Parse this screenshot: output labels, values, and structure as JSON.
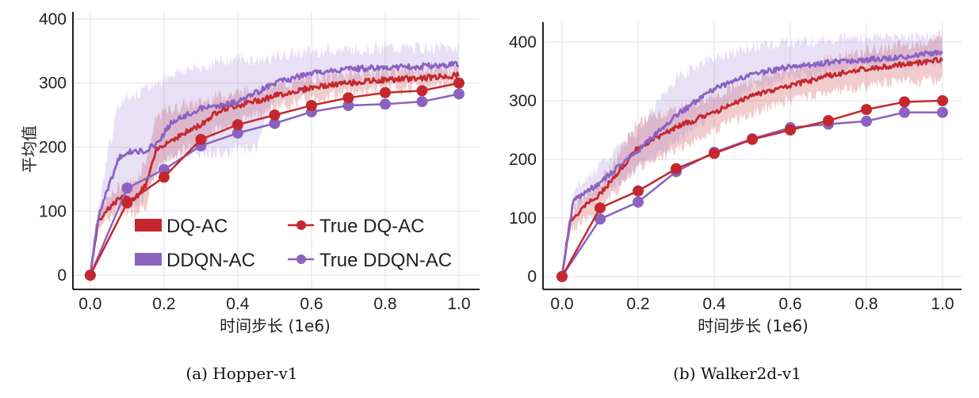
{
  "chart_data": [
    {
      "type": "line",
      "caption": "(a) Hopper-v1",
      "xlabel": "时间步长 (1e6)",
      "ylabel": "平均值",
      "xlim": [
        -0.047,
        1.056
      ],
      "ylim": [
        -22,
        411
      ],
      "xticks": [
        "0.0",
        "0.2",
        "0.4",
        "0.6",
        "0.8",
        "1.0"
      ],
      "yticks": [
        "0",
        "100",
        "200",
        "300",
        "400"
      ],
      "grid": true,
      "legend": "bottom-right",
      "colors": {
        "DQ-AC": "#c4282e",
        "DDQN-AC": "#8a62c2"
      },
      "series": [
        {
          "name": "DQ-AC",
          "kind": "mean-with-band",
          "x": [
            0,
            0.02,
            0.04,
            0.08,
            0.12,
            0.15,
            0.18,
            0.2,
            0.25,
            0.3,
            0.35,
            0.4,
            0.45,
            0.5,
            0.6,
            0.7,
            0.8,
            0.9,
            1.0
          ],
          "y": [
            0,
            80,
            100,
            120,
            120,
            140,
            195,
            205,
            220,
            235,
            258,
            265,
            272,
            280,
            293,
            300,
            305,
            308,
            312
          ],
          "lower": [
            0,
            70,
            88,
            100,
            100,
            110,
            160,
            180,
            195,
            205,
            230,
            240,
            250,
            262,
            275,
            285,
            290,
            293,
            298
          ],
          "upper": [
            0,
            90,
            112,
            140,
            145,
            180,
            245,
            255,
            265,
            270,
            280,
            285,
            290,
            295,
            308,
            315,
            320,
            322,
            325
          ]
        },
        {
          "name": "DDQN-AC",
          "kind": "mean-with-band",
          "x": [
            0,
            0.02,
            0.05,
            0.08,
            0.1,
            0.14,
            0.18,
            0.22,
            0.3,
            0.4,
            0.45,
            0.5,
            0.6,
            0.7,
            0.8,
            0.9,
            1.0
          ],
          "y": [
            0,
            85,
            140,
            185,
            192,
            193,
            205,
            238,
            260,
            270,
            285,
            300,
            315,
            322,
            324,
            326,
            330
          ],
          "lower": [
            0,
            80,
            100,
            110,
            110,
            120,
            160,
            185,
            190,
            195,
            200,
            280,
            295,
            305,
            308,
            310,
            315
          ],
          "upper": [
            0,
            95,
            200,
            270,
            280,
            285,
            300,
            315,
            325,
            340,
            335,
            340,
            350,
            352,
            355,
            355,
            355
          ]
        },
        {
          "name": "True DQ-AC",
          "kind": "markers",
          "x": [
            0,
            0.1,
            0.2,
            0.3,
            0.4,
            0.5,
            0.6,
            0.7,
            0.8,
            0.9,
            1.0
          ],
          "y": [
            0,
            113,
            153,
            212,
            235,
            250,
            265,
            277,
            285,
            288,
            300
          ]
        },
        {
          "name": "True DDQN-AC",
          "kind": "markers",
          "x": [
            0,
            0.1,
            0.2,
            0.3,
            0.4,
            0.5,
            0.6,
            0.7,
            0.8,
            0.9,
            1.0
          ],
          "y": [
            0,
            136,
            165,
            202,
            222,
            237,
            255,
            265,
            267,
            271,
            283
          ]
        }
      ]
    },
    {
      "type": "line",
      "caption": "(b) Walker2d-v1",
      "xlabel": "时间步长 (1e6)",
      "ylabel": "",
      "xlim": [
        -0.05,
        1.05
      ],
      "ylim": [
        -22,
        434
      ],
      "xticks": [
        "0.0",
        "0.2",
        "0.4",
        "0.6",
        "0.8",
        "1.0"
      ],
      "yticks": [
        "0",
        "100",
        "200",
        "300",
        "400"
      ],
      "grid": true,
      "colors": {
        "DQ-AC": "#c4282e",
        "DDQN-AC": "#8a62c2"
      },
      "series": [
        {
          "name": "DQ-AC",
          "kind": "mean-with-band",
          "x": [
            0,
            0.02,
            0.05,
            0.1,
            0.15,
            0.2,
            0.3,
            0.4,
            0.5,
            0.6,
            0.7,
            0.8,
            0.9,
            1.0
          ],
          "y": [
            0,
            90,
            115,
            140,
            180,
            220,
            255,
            280,
            310,
            325,
            343,
            355,
            362,
            370
          ],
          "lower": [
            0,
            75,
            92,
            115,
            150,
            185,
            215,
            250,
            280,
            300,
            315,
            325,
            332,
            335
          ],
          "upper": [
            0,
            100,
            135,
            160,
            210,
            265,
            285,
            310,
            335,
            355,
            370,
            385,
            395,
            405
          ]
        },
        {
          "name": "DDQN-AC",
          "kind": "mean-with-band",
          "x": [
            0,
            0.03,
            0.1,
            0.2,
            0.3,
            0.4,
            0.5,
            0.6,
            0.7,
            0.8,
            0.9,
            1.0
          ],
          "y": [
            0,
            130,
            160,
            215,
            275,
            320,
            345,
            358,
            365,
            370,
            375,
            383
          ],
          "lower": [
            0,
            115,
            140,
            185,
            230,
            280,
            320,
            340,
            350,
            355,
            360,
            365
          ],
          "upper": [
            0,
            150,
            190,
            250,
            340,
            375,
            390,
            400,
            405,
            408,
            410,
            412
          ]
        },
        {
          "name": "True DQ-AC",
          "kind": "markers",
          "x": [
            0,
            0.1,
            0.2,
            0.3,
            0.4,
            0.5,
            0.6,
            0.7,
            0.8,
            0.9,
            1.0
          ],
          "y": [
            0,
            117,
            146,
            184,
            210,
            234,
            250,
            266,
            285,
            298,
            300
          ]
        },
        {
          "name": "True DDQN-AC",
          "kind": "markers",
          "x": [
            0,
            0.1,
            0.2,
            0.3,
            0.4,
            0.5,
            0.6,
            0.7,
            0.8,
            0.9,
            1.0
          ],
          "y": [
            0,
            98,
            127,
            179,
            212,
            235,
            254,
            260,
            265,
            280,
            280
          ]
        }
      ]
    }
  ]
}
